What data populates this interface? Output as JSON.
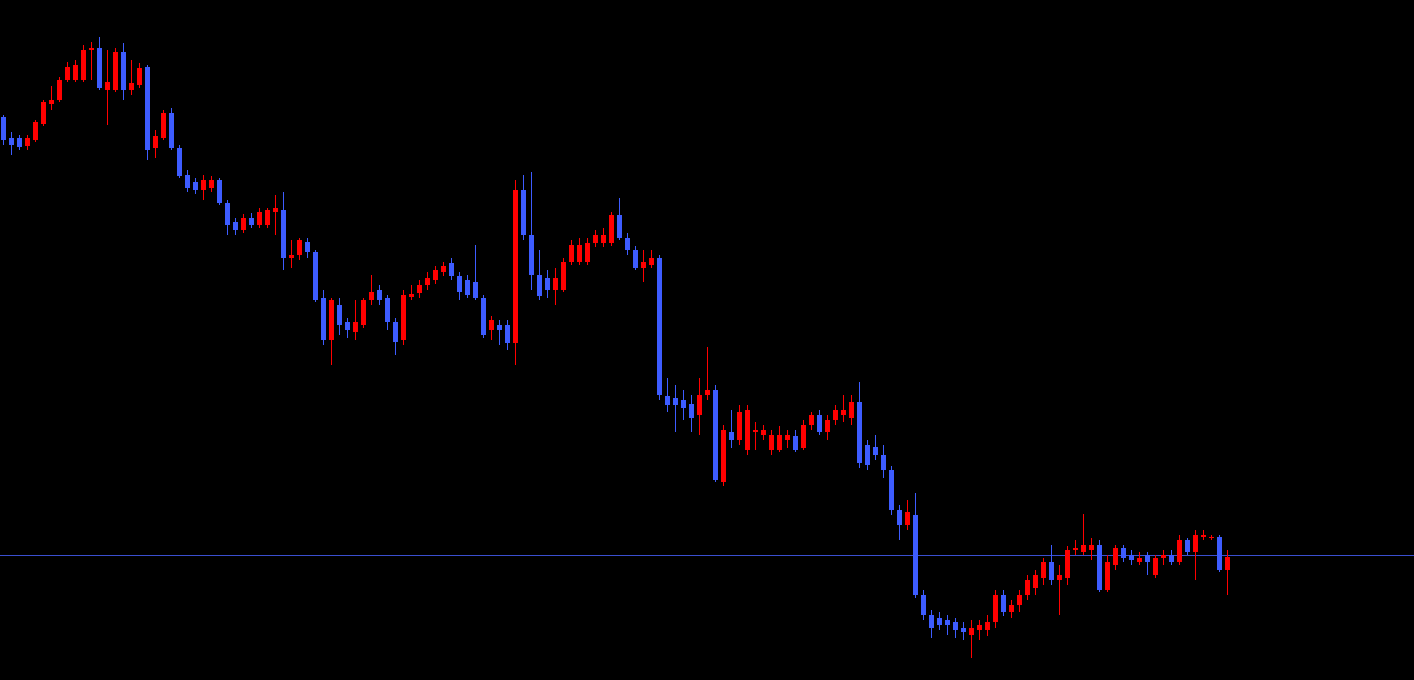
{
  "chart_data": {
    "type": "candlestick",
    "ylim": [
      0,
      680
    ],
    "up_color": "#ff0000",
    "down_color": "#3d5cff",
    "level_line": {
      "value": 125,
      "color": "#3a4fcf"
    },
    "open": [
      563,
      542,
      542,
      534,
      540,
      556,
      576,
      580,
      600,
      600,
      600,
      630,
      632,
      590,
      590,
      628,
      590,
      595,
      613,
      532,
      542,
      567,
      532,
      505,
      498,
      490,
      492,
      500,
      477,
      458,
      450,
      462,
      455,
      455,
      468,
      470,
      422,
      425,
      438,
      428,
      382,
      340,
      375,
      358,
      348,
      355,
      380,
      390,
      382,
      358,
      340,
      383,
      387,
      395,
      400,
      408,
      417,
      404,
      400,
      398,
      382,
      350,
      355,
      355,
      337,
      490,
      445,
      405,
      402,
      390,
      390,
      418,
      418,
      418,
      437,
      437,
      437,
      465,
      442,
      430,
      412,
      415,
      422,
      284,
      282,
      280,
      276,
      265,
      285,
      290,
      198,
      248,
      240,
      230,
      248,
      245,
      230,
      230,
      240,
      244,
      232,
      255,
      265,
      248,
      260,
      265,
      262,
      278,
      235,
      233,
      225,
      210,
      170,
      155,
      165,
      85,
      65,
      62,
      60,
      58,
      52,
      45,
      50,
      50,
      58,
      85,
      68,
      75,
      85,
      92,
      102,
      118,
      100,
      102,
      130,
      128,
      130,
      135,
      90,
      115,
      132,
      125,
      118,
      125,
      105,
      122,
      125,
      118,
      140,
      128,
      143,
      142,
      143,
      110
    ],
    "high": [
      565,
      548,
      545,
      545,
      560,
      580,
      594,
      603,
      618,
      620,
      635,
      638,
      643,
      630,
      632,
      637,
      620,
      617,
      615,
      550,
      570,
      572,
      535,
      510,
      502,
      505,
      504,
      502,
      480,
      462,
      466,
      467,
      472,
      472,
      485,
      488,
      440,
      442,
      442,
      430,
      390,
      382,
      382,
      362,
      380,
      382,
      405,
      395,
      385,
      362,
      390,
      395,
      400,
      408,
      414,
      418,
      422,
      408,
      405,
      435,
      385,
      364,
      360,
      360,
      500,
      505,
      508,
      430,
      410,
      412,
      422,
      440,
      442,
      442,
      450,
      452,
      468,
      482,
      447,
      434,
      430,
      430,
      425,
      302,
      295,
      290,
      285,
      302,
      333,
      295,
      255,
      270,
      275,
      275,
      258,
      255,
      250,
      254,
      250,
      250,
      260,
      268,
      270,
      265,
      275,
      285,
      285,
      298,
      240,
      245,
      235,
      214,
      175,
      180,
      187,
      90,
      70,
      68,
      65,
      62,
      58,
      60,
      60,
      65,
      90,
      90,
      80,
      90,
      105,
      110,
      122,
      135,
      115,
      134,
      140,
      166,
      142,
      140,
      125,
      135,
      135,
      130,
      128,
      128,
      125,
      130,
      130,
      145,
      142,
      150,
      150,
      145,
      145,
      130
    ],
    "low": [
      535,
      525,
      530,
      530,
      538,
      554,
      570,
      578,
      598,
      598,
      598,
      600,
      590,
      555,
      588,
      580,
      585,
      592,
      520,
      522,
      540,
      530,
      502,
      488,
      486,
      480,
      488,
      475,
      445,
      445,
      447,
      452,
      452,
      452,
      445,
      410,
      412,
      420,
      422,
      378,
      335,
      315,
      345,
      342,
      340,
      352,
      375,
      375,
      350,
      325,
      335,
      380,
      382,
      390,
      396,
      404,
      400,
      380,
      382,
      380,
      342,
      340,
      335,
      330,
      315,
      440,
      390,
      380,
      382,
      375,
      388,
      415,
      415,
      415,
      433,
      433,
      434,
      440,
      425,
      410,
      398,
      412,
      280,
      268,
      248,
      260,
      248,
      245,
      280,
      198,
      194,
      232,
      235,
      225,
      230,
      240,
      225,
      228,
      232,
      228,
      230,
      250,
      245,
      240,
      255,
      258,
      255,
      212,
      210,
      220,
      202,
      165,
      140,
      150,
      82,
      60,
      42,
      50,
      45,
      42,
      40,
      22,
      40,
      44,
      52,
      64,
      62,
      68,
      80,
      85,
      95,
      95,
      65,
      95,
      125,
      125,
      120,
      88,
      88,
      110,
      118,
      115,
      115,
      105,
      102,
      115,
      115,
      115,
      125,
      100,
      140,
      140,
      108,
      85
    ],
    "close": [
      540,
      535,
      533,
      542,
      558,
      578,
      580,
      600,
      613,
      615,
      630,
      632,
      592,
      598,
      628,
      590,
      597,
      612,
      530,
      544,
      567,
      532,
      504,
      492,
      490,
      500,
      500,
      477,
      455,
      450,
      462,
      455,
      468,
      470,
      472,
      422,
      425,
      440,
      428,
      380,
      340,
      380,
      355,
      350,
      358,
      380,
      388,
      380,
      358,
      338,
      385,
      386,
      395,
      402,
      410,
      414,
      404,
      388,
      385,
      382,
      345,
      360,
      350,
      337,
      490,
      445,
      405,
      384,
      390,
      402,
      418,
      435,
      435,
      437,
      445,
      445,
      465,
      442,
      430,
      412,
      418,
      422,
      285,
      275,
      275,
      272,
      262,
      285,
      290,
      200,
      250,
      240,
      268,
      270,
      250,
      250,
      245,
      245,
      245,
      230,
      255,
      265,
      248,
      260,
      270,
      270,
      278,
      217,
      215,
      225,
      210,
      170,
      155,
      168,
      85,
      65,
      52,
      55,
      55,
      50,
      48,
      52,
      55,
      58,
      85,
      68,
      75,
      85,
      100,
      105,
      118,
      100,
      105,
      130,
      132,
      135,
      135,
      90,
      118,
      132,
      122,
      120,
      122,
      118,
      122,
      125,
      118,
      140,
      128,
      145,
      145,
      143,
      110,
      123
    ]
  }
}
